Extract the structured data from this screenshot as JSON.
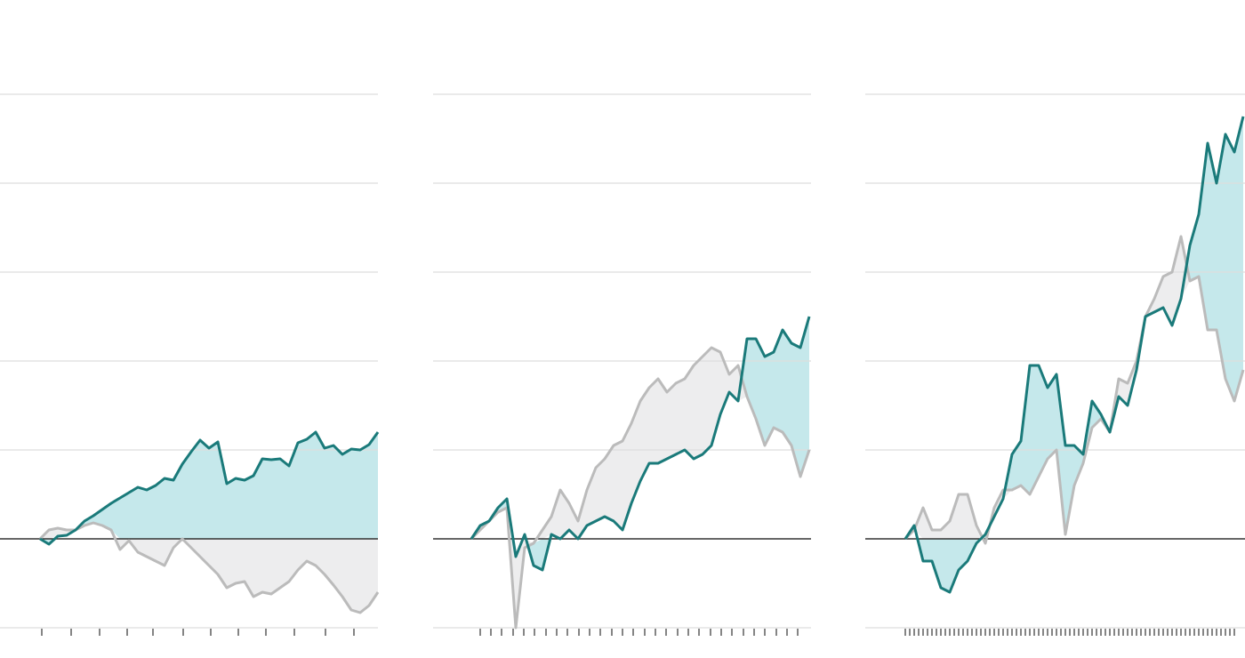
{
  "chart_data": [
    {
      "type": "line",
      "x": [
        0,
        1,
        2,
        3,
        4,
        5,
        6,
        7,
        8,
        9,
        10,
        11,
        12,
        13,
        14,
        15,
        16,
        17,
        18,
        19,
        20,
        21,
        22,
        23,
        24,
        25,
        26,
        27,
        28,
        29,
        30,
        31,
        32,
        33,
        34,
        35,
        36,
        37,
        38
      ],
      "series": [
        {
          "color": "#1a7a7a",
          "fill": "#c5e8eb",
          "values": [
            0,
            -0.06,
            0.03,
            0.04,
            0.1,
            0.2,
            0.26,
            0.33,
            0.4,
            0.46,
            0.52,
            0.58,
            0.55,
            0.6,
            0.68,
            0.66,
            0.84,
            0.98,
            1.11,
            1.02,
            1.09,
            0.62,
            0.68,
            0.66,
            0.71,
            0.9,
            0.89,
            0.9,
            0.82,
            1.08,
            1.12,
            1.2,
            1.02,
            1.05,
            0.95,
            1.01,
            1.0,
            1.06,
            1.2
          ]
        },
        {
          "color": "#bbbbbb",
          "fill": "#ededee",
          "values": [
            0,
            0.1,
            0.12,
            0.1,
            0.1,
            0.15,
            0.18,
            0.15,
            0.1,
            -0.12,
            -0.02,
            -0.15,
            -0.2,
            -0.25,
            -0.3,
            -0.1,
            0,
            -0.1,
            -0.2,
            -0.3,
            -0.4,
            -0.55,
            -0.5,
            -0.48,
            -0.65,
            -0.6,
            -0.62,
            -0.55,
            -0.48,
            -0.35,
            -0.25,
            -0.3,
            -0.4,
            -0.52,
            -0.65,
            -0.8,
            -0.83,
            -0.75,
            -0.6
          ]
        }
      ],
      "xlim": [
        -4.5,
        38
      ],
      "ylim": [
        -1,
        5
      ],
      "xticks": [
        0.2,
        3.5,
        6.7,
        9.8,
        12.7,
        16.1,
        19.2,
        22.3,
        25.4,
        28.6,
        32.1,
        35.3
      ],
      "yticks": [
        -1,
        0,
        1,
        2,
        3,
        4,
        5
      ],
      "grid": true
    },
    {
      "type": "line",
      "x": [
        0,
        1,
        2,
        3,
        4,
        5,
        6,
        7,
        8,
        9,
        10,
        11,
        12,
        13,
        14,
        15,
        16,
        17,
        18,
        19,
        20,
        21,
        22,
        23,
        24,
        25,
        26,
        27,
        28,
        29,
        30,
        31,
        32,
        33,
        34,
        35,
        36,
        37,
        38
      ],
      "series": [
        {
          "color": "#1a7a7a",
          "fill": "#c5e8eb",
          "values": [
            0,
            0.15,
            0.2,
            0.35,
            0.45,
            -0.2,
            0.05,
            -0.3,
            -0.35,
            0.05,
            0,
            0.1,
            0,
            0.15,
            0.2,
            0.25,
            0.2,
            0.1,
            0.4,
            0.65,
            0.85,
            0.85,
            0.9,
            0.95,
            1.0,
            0.9,
            0.95,
            1.05,
            1.4,
            1.65,
            1.55,
            2.25,
            2.25,
            2.05,
            2.1,
            2.35,
            2.2,
            2.15,
            2.5
          ]
        },
        {
          "color": "#bbbbbb",
          "fill": "#ededee",
          "values": [
            0,
            0.1,
            0.2,
            0.3,
            0.35,
            -1.0,
            -0.1,
            -0.05,
            0.1,
            0.25,
            0.55,
            0.4,
            0.2,
            0.55,
            0.8,
            0.9,
            1.05,
            1.1,
            1.3,
            1.55,
            1.7,
            1.8,
            1.65,
            1.75,
            1.8,
            1.95,
            2.05,
            2.15,
            2.1,
            1.85,
            1.95,
            1.6,
            1.35,
            1.05,
            1.25,
            1.2,
            1.05,
            0.7,
            1.0
          ]
        }
      ],
      "xlim": [
        -4.3,
        38.2
      ],
      "ylim": [
        -1,
        5
      ],
      "xticks": [
        1.0,
        2.2,
        3.4,
        4.7,
        5.9,
        7.1,
        8.4,
        9.6,
        10.8,
        12.1,
        13.3,
        14.5,
        15.8,
        17.0,
        18.2,
        19.5,
        20.7,
        21.9,
        23.2,
        24.4,
        25.6,
        26.9,
        28.1,
        29.3,
        30.6,
        31.8,
        33.0,
        34.3,
        35.5,
        36.7
      ],
      "yticks": [
        -1,
        0,
        1,
        2,
        3,
        4,
        5
      ],
      "grid": true
    },
    {
      "type": "line",
      "x": [
        0,
        1,
        2,
        3,
        4,
        5,
        6,
        7,
        8,
        9,
        10,
        11,
        12,
        13,
        14,
        15,
        16,
        17,
        18,
        19,
        20,
        21,
        22,
        23,
        24,
        25,
        26,
        27,
        28,
        29,
        30,
        31,
        32,
        33,
        34,
        35,
        36,
        37,
        38
      ],
      "series": [
        {
          "color": "#1a7a7a",
          "fill": "#c5e8eb",
          "values": [
            0,
            0.15,
            -0.25,
            -0.25,
            -0.55,
            -0.6,
            -0.35,
            -0.25,
            -0.05,
            0.05,
            0.25,
            0.45,
            0.95,
            1.1,
            1.95,
            1.95,
            1.7,
            1.85,
            1.05,
            1.05,
            0.95,
            1.55,
            1.4,
            1.2,
            1.6,
            1.5,
            1.9,
            2.5,
            2.55,
            2.6,
            2.4,
            2.7,
            3.3,
            3.65,
            4.45,
            4.0,
            4.55,
            4.35,
            4.75
          ]
        },
        {
          "color": "#bbbbbb",
          "fill": "#ededee",
          "values": [
            0,
            0.1,
            0.35,
            0.1,
            0.1,
            0.2,
            0.5,
            0.5,
            0.15,
            -0.05,
            0.35,
            0.55,
            0.55,
            0.6,
            0.5,
            0.7,
            0.9,
            1.0,
            0.05,
            0.6,
            0.85,
            1.25,
            1.35,
            1.2,
            1.8,
            1.75,
            2.0,
            2.5,
            2.7,
            2.95,
            3.0,
            3.4,
            2.9,
            2.95,
            2.35,
            2.35,
            1.8,
            1.55,
            1.9
          ]
        }
      ],
      "xlim": [
        -4.5,
        38.2
      ],
      "ylim": [
        -1,
        5
      ],
      "xticks": [
        0,
        0.5,
        1,
        1.5,
        2,
        2.5,
        3,
        3.5,
        4,
        4.5,
        5,
        5.5,
        6,
        6.5,
        7,
        7.5,
        8,
        8.5,
        9,
        9.5,
        10,
        10.5,
        11,
        11.5,
        12,
        12.5,
        13,
        13.5,
        14,
        14.5,
        15,
        15.5,
        16,
        16.5,
        17,
        17.5,
        18,
        18.5,
        19,
        19.5,
        20,
        20.5,
        21,
        21.5,
        22,
        22.5,
        23,
        23.5,
        24,
        24.5,
        25,
        25.5,
        26,
        26.5,
        27,
        27.5,
        28,
        28.5,
        29,
        29.5,
        30,
        30.5,
        31,
        31.5,
        32,
        32.5,
        33,
        33.5,
        34,
        34.5,
        35,
        35.5,
        36,
        36.5,
        37
      ],
      "yticks": [
        -1,
        0,
        1,
        2,
        3,
        4,
        5
      ],
      "grid": true
    }
  ]
}
